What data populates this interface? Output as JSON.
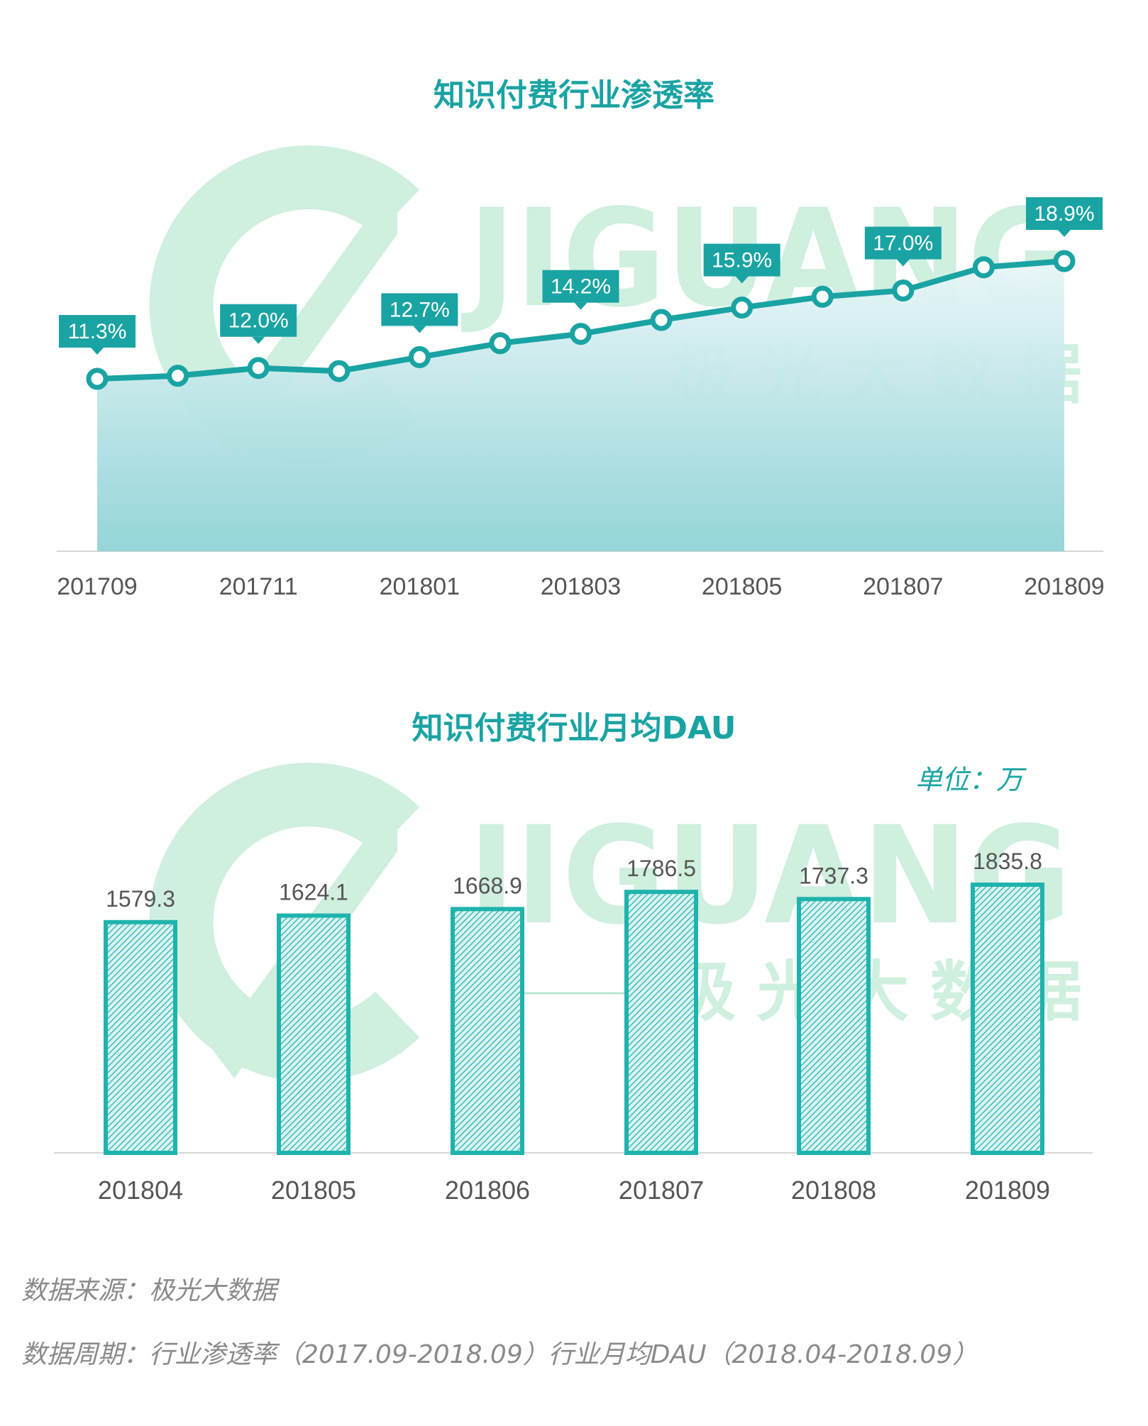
{
  "colors": {
    "accent": "#1aa3a3",
    "bar_fill": "#1fb3ad",
    "watermark": "#a8e3c6",
    "axis_text": "#555555",
    "footer_text": "#8a8a8a"
  },
  "watermark": {
    "brand": "JIGUANG",
    "subtitle": "极光大数据"
  },
  "unit_label": "单位：万",
  "footer": {
    "source": "数据来源：极光大数据",
    "period": "数据周期：行业渗透率（2017.09-2018.09）行业月均DAU（2018.04-2018.09）"
  },
  "chart_data": [
    {
      "type": "area",
      "title": "知识付费行业渗透率",
      "x": [
        "201709",
        "201710",
        "201711",
        "201712",
        "201801",
        "201802",
        "201803",
        "201804",
        "201805",
        "201806",
        "201807",
        "201808",
        "201809"
      ],
      "tick_labels": [
        "201709",
        "201711",
        "201801",
        "201803",
        "201805",
        "201807",
        "201809"
      ],
      "values": [
        11.3,
        11.5,
        12.0,
        11.8,
        12.7,
        13.6,
        14.2,
        15.1,
        15.9,
        16.6,
        17.0,
        18.5,
        18.9
      ],
      "data_labels": [
        {
          "x": "201709",
          "text": "11.3%"
        },
        {
          "x": "201711",
          "text": "12.0%"
        },
        {
          "x": "201801",
          "text": "12.7%"
        },
        {
          "x": "201803",
          "text": "14.2%"
        },
        {
          "x": "201805",
          "text": "15.9%"
        },
        {
          "x": "201807",
          "text": "17.0%"
        },
        {
          "x": "201809",
          "text": "18.9%"
        }
      ],
      "unit": "%",
      "ylim": [
        0,
        25
      ],
      "grid": false,
      "legend": "none"
    },
    {
      "type": "bar",
      "title": "知识付费行业月均DAU",
      "categories": [
        "201804",
        "201805",
        "201806",
        "201807",
        "201808",
        "201809"
      ],
      "values": [
        1579.3,
        1624.1,
        1668.9,
        1786.5,
        1737.3,
        1835.8
      ],
      "ylim": [
        0,
        2200
      ],
      "grid": false,
      "legend": "none"
    }
  ]
}
